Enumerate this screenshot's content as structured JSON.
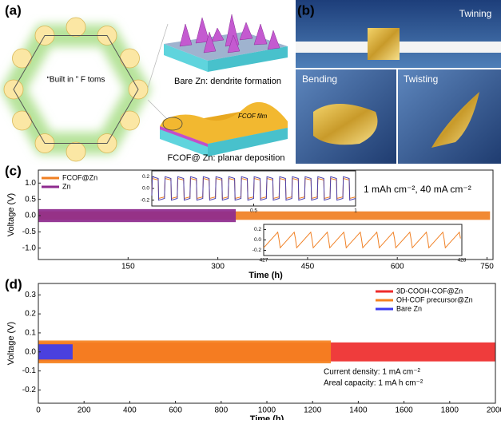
{
  "panels": {
    "a": {
      "label": "(a)",
      "ring_text": "“Built in ” F toms",
      "top_caption": "Bare Zn: dendrite formation",
      "bottom_caption": "FCOF@ Zn: planar deposition",
      "film_label": "FCOF film"
    },
    "b": {
      "label": "(b)",
      "photos": [
        "Twining",
        "Bending",
        "Twisting"
      ]
    }
  },
  "chart_data": [
    {
      "type": "band",
      "panel_label": "(c)",
      "x_label": "Time (h)",
      "y_label": "Voltage (V)",
      "annotation": "1 mAh cm⁻², 40 mA cm⁻²",
      "legend": "upper left",
      "xlim": [
        0,
        760
      ],
      "xticks": [
        150,
        300,
        450,
        600,
        750
      ],
      "ylim": [
        -1.35,
        1.4
      ],
      "yticks": [
        {
          "value": 1,
          "label": "1.0"
        },
        0.5,
        {
          "value": 0,
          "label": "0.0"
        },
        -0.5,
        {
          "value": -1,
          "label": "-1.0"
        }
      ],
      "series": [
        {
          "name": "FCOF@Zn",
          "color": "#f07f22",
          "time_range": [
            0,
            755
          ],
          "voltage_range": [
            -0.13,
            0.13
          ]
        },
        {
          "name": "Zn",
          "color": "#8e2a8e",
          "time_range": [
            0,
            330
          ],
          "voltage_range": [
            -0.2,
            0.2
          ]
        }
      ],
      "insets": [
        {
          "xlim": [
            0,
            1
          ],
          "xticks": [
            0.5,
            1
          ],
          "ylim": [
            -0.3,
            0.3
          ],
          "yticks": [
            0.2,
            {
              "value": 0,
              "label": "0.0"
            },
            -0.2
          ],
          "series": [
            {
              "color": "#f07f22",
              "shape": "square",
              "cycles": 16,
              "voltage_range": [
                -0.17,
                0.17
              ]
            },
            {
              "color": "#4b3fa8",
              "shape": "square",
              "cycles": 16,
              "voltage_range": [
                -0.2,
                0.2
              ]
            }
          ]
        },
        {
          "xlim": [
            427,
            428
          ],
          "xticks": [
            427,
            428
          ],
          "ylim": [
            -0.3,
            0.3
          ],
          "yticks": [
            0.2,
            {
              "value": 0,
              "label": "0.0"
            },
            -0.2
          ],
          "series": [
            {
              "color": "#f07f22",
              "shape": "sawtooth",
              "cycles": 12,
              "voltage_range": [
                -0.15,
                0.15
              ]
            }
          ]
        }
      ]
    },
    {
      "type": "band",
      "panel_label": "(d)",
      "x_label": "Time (h)",
      "y_label": "Voltage (V)",
      "annotations": [
        "Current density: 1 mA cm⁻²",
        "Areal capacity: 1 mA h cm⁻²"
      ],
      "legend": "upper right",
      "xlim": [
        0,
        2000
      ],
      "xticks": [
        0,
        200,
        400,
        600,
        800,
        1000,
        1200,
        1400,
        1600,
        1800,
        2000
      ],
      "ylim": [
        -0.27,
        0.36
      ],
      "yticks": [
        0.3,
        0.2,
        0.1,
        {
          "value": 0,
          "label": "0.0"
        },
        -0.1,
        -0.2
      ],
      "series": [
        {
          "name": "3D-COOH-COF@Zn",
          "color": "#ee2b2b",
          "time_range": [
            0,
            2000
          ],
          "voltage_range": [
            -0.05,
            0.05
          ]
        },
        {
          "name": "OH-COF precursor@Zn",
          "color": "#f58220",
          "time_range": [
            0,
            1280
          ],
          "voltage_range": [
            -0.06,
            0.06
          ]
        },
        {
          "name": "Bare Zn",
          "color": "#3b3bf0",
          "time_range": [
            0,
            150
          ],
          "voltage_range": [
            -0.04,
            0.04
          ]
        }
      ]
    }
  ]
}
